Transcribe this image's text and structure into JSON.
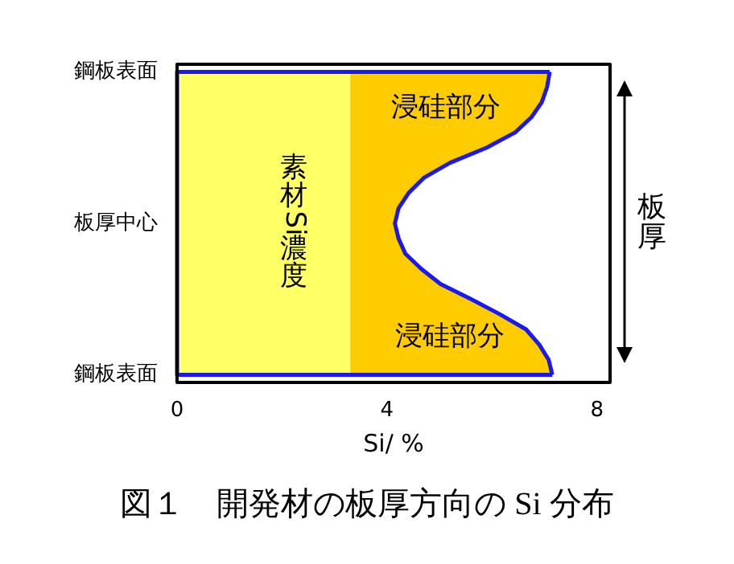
{
  "chart_data": {
    "type": "area",
    "orientation": "horizontal",
    "title": "図１　開発材の板厚方向の Si 分布",
    "xlabel": "Si/ %",
    "y2label": "板厚",
    "xlim": [
      0,
      8.25
    ],
    "xticks": [
      0,
      4,
      8
    ],
    "categories": [
      "鋼板表面",
      null,
      null,
      null,
      null,
      null,
      null,
      null,
      null,
      null,
      "板厚中心",
      null,
      null,
      null,
      null,
      null,
      null,
      null,
      null,
      null,
      "鋼板表面"
    ],
    "grid": false,
    "legend": false,
    "series": [
      {
        "color": "#ffcc00",
        "values": [
          7.1,
          7.05,
          6.95,
          6.75,
          6.44,
          5.9,
          5.2,
          4.7,
          4.41,
          4.22,
          4.15,
          4.22,
          4.35,
          4.65,
          5.02,
          5.6,
          6.15,
          6.65,
          6.9,
          7.08,
          7.15
        ]
      },
      {
        "color": "#ffff66",
        "values": [
          3.3,
          3.3,
          3.3,
          3.3,
          3.3,
          3.3,
          3.3,
          3.3,
          3.3,
          3.3,
          3.3,
          3.3,
          3.3,
          3.3,
          3.3,
          3.3,
          3.3,
          3.3,
          3.3,
          3.3,
          3.3
        ]
      },
      {
        "type": "line",
        "color": "#1a1aee",
        "values": [
          7.1,
          7.05,
          6.95,
          6.75,
          6.44,
          5.9,
          5.2,
          4.7,
          4.41,
          4.22,
          4.15,
          4.22,
          4.35,
          4.65,
          5.02,
          5.6,
          6.15,
          6.65,
          6.9,
          7.08,
          7.15
        ]
      }
    ],
    "annotations": [
      "素材Si濃度",
      "浸硅部分",
      "浸硅部分"
    ]
  }
}
